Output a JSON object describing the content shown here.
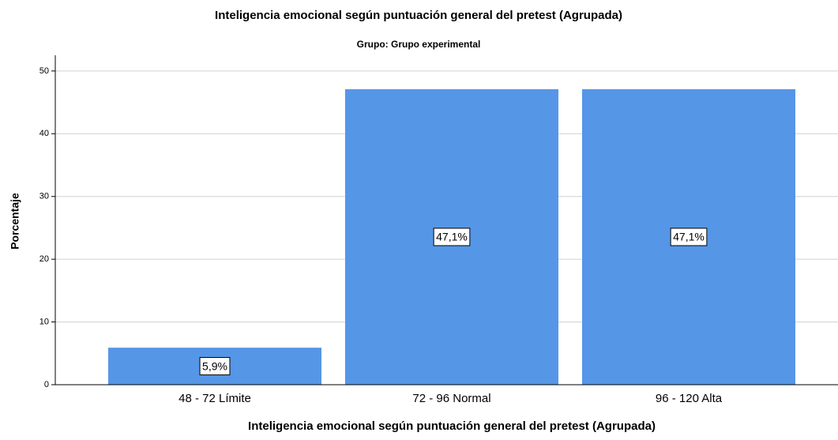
{
  "chart_data": {
    "type": "bar",
    "title": "Inteligencia emocional según puntuación general del pretest (Agrupada)",
    "subtitle": "Grupo: Grupo experimental",
    "y_label": "Porcentaje",
    "x_label": "Inteligencia emocional según puntuación general del pretest (Agrupada)",
    "categories": [
      "48 - 72 Límite",
      "72 - 96 Normal",
      "96 - 120 Alta"
    ],
    "values": [
      5.9,
      47.1,
      47.1
    ],
    "value_labels": [
      "5,9%",
      "47,1%",
      "47,1%"
    ],
    "color": "#5596e6",
    "ylim": [
      0,
      52.5
    ],
    "yticks": [
      0,
      10,
      20,
      30,
      40,
      50
    ],
    "grid": true
  }
}
